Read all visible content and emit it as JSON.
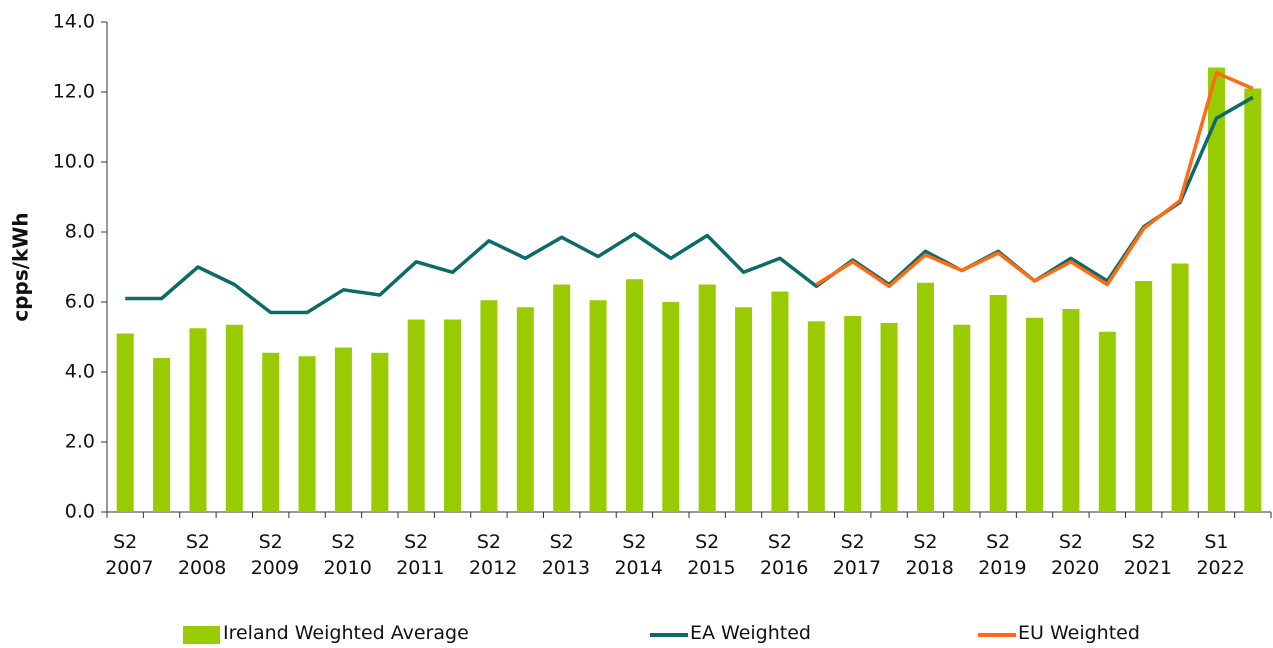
{
  "chart_data": {
    "type": "bar+line",
    "y_label": "cpps/kWh",
    "categories": [
      "S2 2007",
      null,
      "S2 2008",
      null,
      "S2 2009",
      null,
      "S2 2010",
      null,
      "S2 2011",
      null,
      "S2 2012",
      null,
      "S2 2013",
      null,
      "S2 2014",
      null,
      "S2 2015",
      null,
      "S2 2016",
      null,
      "S2 2017",
      null,
      "S2 2018",
      null,
      "S2 2019",
      null,
      "S2 2020",
      null,
      "S2 2021",
      null,
      "S1 2022",
      null
    ],
    "series": [
      {
        "name": "Ireland Weighted Average",
        "type": "bar",
        "color": "#99cc00",
        "values": [
          5.1,
          4.4,
          5.25,
          5.35,
          4.55,
          4.45,
          4.7,
          4.55,
          5.5,
          5.5,
          6.05,
          5.85,
          6.5,
          6.05,
          6.65,
          6.0,
          6.5,
          5.85,
          6.3,
          5.45,
          5.6,
          5.4,
          6.55,
          5.35,
          6.2,
          5.55,
          5.8,
          5.15,
          6.6,
          7.1,
          12.7,
          12.1
        ]
      },
      {
        "name": "EA Weighted",
        "type": "line",
        "color": "#0b6b68",
        "values": [
          6.1,
          6.1,
          7.0,
          6.5,
          5.7,
          5.7,
          6.35,
          6.2,
          7.15,
          6.85,
          7.75,
          7.25,
          7.85,
          7.3,
          7.95,
          7.25,
          7.9,
          6.85,
          7.25,
          6.45,
          7.2,
          6.5,
          7.45,
          6.9,
          7.45,
          6.6,
          7.25,
          6.6,
          8.15,
          8.85,
          11.25,
          11.85
        ]
      },
      {
        "name": "EU Weighted",
        "type": "line",
        "color": "#ff6a13",
        "values": [
          null,
          null,
          null,
          null,
          null,
          null,
          null,
          null,
          null,
          null,
          null,
          null,
          null,
          null,
          null,
          null,
          null,
          null,
          null,
          6.5,
          7.15,
          6.45,
          7.35,
          6.9,
          7.4,
          6.6,
          7.15,
          6.5,
          8.1,
          8.9,
          12.55,
          12.1
        ]
      }
    ],
    "ylim": [
      0,
      14
    ],
    "yticks": [
      {
        "value": 0,
        "label": "0.0"
      },
      {
        "value": 2,
        "label": "2.0"
      },
      {
        "value": 4,
        "label": "4.0"
      },
      {
        "value": 6,
        "label": "6.0"
      },
      {
        "value": 8,
        "label": "8.0"
      },
      {
        "value": 10,
        "label": "10.0"
      },
      {
        "value": 12,
        "label": "12.0"
      },
      {
        "value": 14,
        "label": "14.0"
      }
    ],
    "legend": "bottom"
  }
}
